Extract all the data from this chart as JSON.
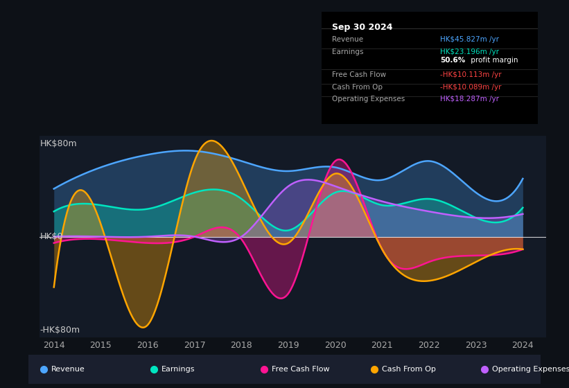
{
  "bg_color": "#0d1117",
  "plot_bg_color": "#131a26",
  "title_box": {
    "date": "Sep 30 2024",
    "rows": [
      {
        "label": "Revenue",
        "value": "HK$45.827m /yr",
        "value_color": "#4da6ff"
      },
      {
        "label": "Earnings",
        "value": "HK$23.196m /yr",
        "value_color": "#00e5c0"
      },
      {
        "label": "",
        "value": "50.6% profit margin",
        "value_color": "#ffffff",
        "bold_part": "50.6%"
      },
      {
        "label": "Free Cash Flow",
        "value": "-HK$10.113m /yr",
        "value_color": "#ff4444"
      },
      {
        "label": "Cash From Op",
        "value": "-HK$10.089m /yr",
        "value_color": "#ff4444"
      },
      {
        "label": "Operating Expenses",
        "value": "HK$18.287m /yr",
        "value_color": "#c060ff"
      }
    ]
  },
  "ylabel_top": "HK$80m",
  "ylabel_zero": "HK$0",
  "ylabel_bottom": "-HK$80m",
  "ylim": [
    -80,
    80
  ],
  "years": [
    2014,
    2015,
    2016,
    2017,
    2018,
    2019,
    2020,
    2021,
    2022,
    2023,
    2024
  ],
  "revenue": [
    38,
    55,
    65,
    68,
    60,
    52,
    55,
    45,
    60,
    35,
    46
  ],
  "earnings": [
    20,
    25,
    22,
    35,
    30,
    5,
    35,
    25,
    30,
    15,
    23
  ],
  "free_cash_flow": [
    -5,
    -2,
    -5,
    0,
    -2,
    -45,
    60,
    -10,
    -20,
    -15,
    -10
  ],
  "cash_from_op": [
    -40,
    10,
    -70,
    60,
    45,
    -5,
    50,
    -10,
    -35,
    -20,
    -10
  ],
  "operating_expenses": [
    0,
    0,
    0,
    0,
    0,
    40,
    40,
    28,
    20,
    15,
    18
  ],
  "colors": {
    "revenue": "#4da6ff",
    "earnings": "#00e5c0",
    "free_cash_flow": "#ff1493",
    "cash_from_op": "#ffa500",
    "operating_expenses": "#c060ff"
  },
  "legend": [
    {
      "label": "Revenue",
      "color": "#4da6ff"
    },
    {
      "label": "Earnings",
      "color": "#00e5c0"
    },
    {
      "label": "Free Cash Flow",
      "color": "#ff1493"
    },
    {
      "label": "Cash From Op",
      "color": "#ffa500"
    },
    {
      "label": "Operating Expenses",
      "color": "#c060ff"
    }
  ]
}
